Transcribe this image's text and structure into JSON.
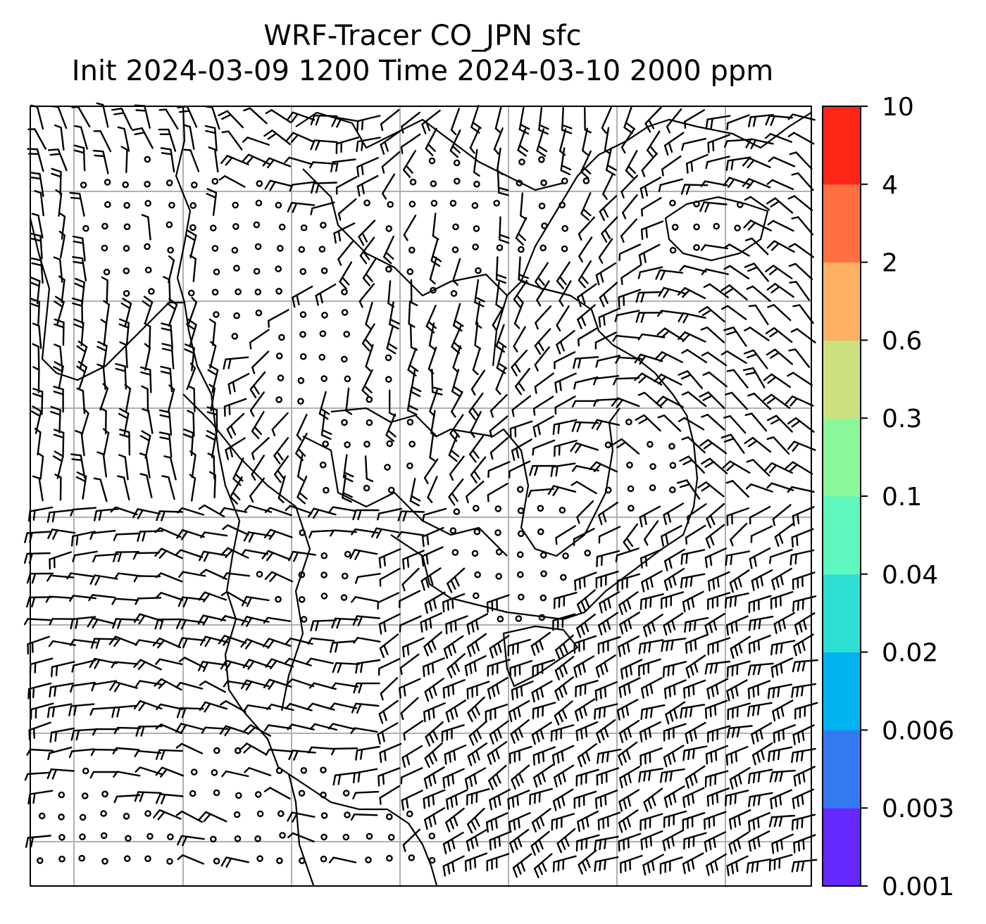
{
  "title": {
    "line1": "WRF-Tracer CO_JPN sfc",
    "line2": "Init 2024-03-09 1200 Time 2024-03-10 2000 ppm"
  },
  "colorbar": {
    "levels": [
      "0.001",
      "0.003",
      "0.006",
      "0.02",
      "0.04",
      "0.1",
      "0.3",
      "0.6",
      "2",
      "4",
      "10"
    ],
    "colors": [
      "#6528ff",
      "#3479f0",
      "#00b2ee",
      "#2ddfd2",
      "#5ef7be",
      "#8af79a",
      "#cde07f",
      "#fdaf62",
      "#ff7040",
      "#ff2618"
    ]
  },
  "map": {
    "gridline_color": "#b0b0b0",
    "barb_color": "#000000",
    "coastline_color": "#000000",
    "background": "#ffffff"
  }
}
